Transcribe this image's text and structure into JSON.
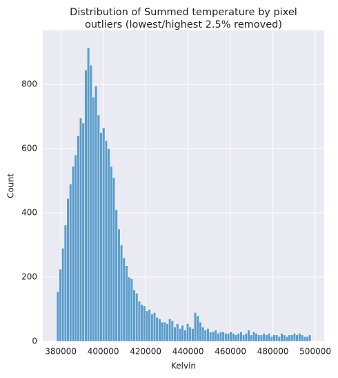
{
  "chart_data": {
    "type": "histogram",
    "title": [
      "Distribution of Summed temperature by pixel",
      "outliers (lowest/highest 2.5% removed)"
    ],
    "xlabel": "Kelvin",
    "ylabel": "Count",
    "bins": [
      378000,
      379200,
      380400,
      381600,
      382800,
      384000,
      385200,
      386400,
      387600,
      388800,
      390000,
      391200,
      392400,
      393600,
      394800,
      396000,
      397200,
      398400,
      399600,
      400800,
      402000,
      403200,
      404400,
      405600,
      406800,
      408000,
      409200,
      410400,
      411600,
      412800,
      414000,
      415200,
      416400,
      417600,
      418800,
      420000,
      421200,
      422400,
      423600,
      424800,
      426000,
      427200,
      428400,
      429600,
      430800,
      432000,
      433200,
      434400,
      435600,
      436800,
      438000,
      439200,
      440400,
      441600,
      442800,
      444000,
      445200,
      446400,
      447600,
      448800,
      450000,
      451200,
      452400,
      453600,
      454800,
      456000,
      457200,
      458400,
      459600,
      460800,
      462000,
      463200,
      464400,
      465600,
      466800,
      468000,
      469200,
      470400,
      471600,
      472800,
      474000,
      475200,
      476400,
      477600,
      478800,
      480000,
      481200,
      482400,
      483600,
      484800,
      486000,
      487200,
      488400,
      489600,
      490800,
      492000,
      493200,
      494400,
      495600,
      496800,
      498000
    ],
    "values": [
      155,
      225,
      290,
      362,
      445,
      490,
      545,
      580,
      640,
      695,
      680,
      845,
      915,
      860,
      760,
      795,
      705,
      650,
      665,
      625,
      600,
      545,
      510,
      410,
      350,
      300,
      260,
      235,
      200,
      195,
      160,
      150,
      125,
      115,
      110,
      95,
      100,
      85,
      90,
      75,
      70,
      60,
      60,
      55,
      70,
      65,
      45,
      55,
      40,
      50,
      35,
      55,
      45,
      40,
      90,
      80,
      60,
      45,
      35,
      40,
      30,
      30,
      35,
      25,
      30,
      30,
      25,
      25,
      30,
      25,
      20,
      25,
      30,
      20,
      25,
      35,
      20,
      30,
      25,
      20,
      20,
      25,
      20,
      25,
      15,
      20,
      20,
      15,
      25,
      20,
      15,
      20,
      20,
      25,
      20,
      25,
      20,
      15,
      15,
      20
    ],
    "color": "#5c9ccb",
    "xlim": [
      371500,
      504200
    ],
    "ylim": [
      0,
      968
    ],
    "xticks": [
      380000,
      400000,
      420000,
      440000,
      460000,
      480000,
      500000
    ],
    "yticks": [
      0,
      200,
      400,
      600,
      800
    ],
    "grid": true
  }
}
